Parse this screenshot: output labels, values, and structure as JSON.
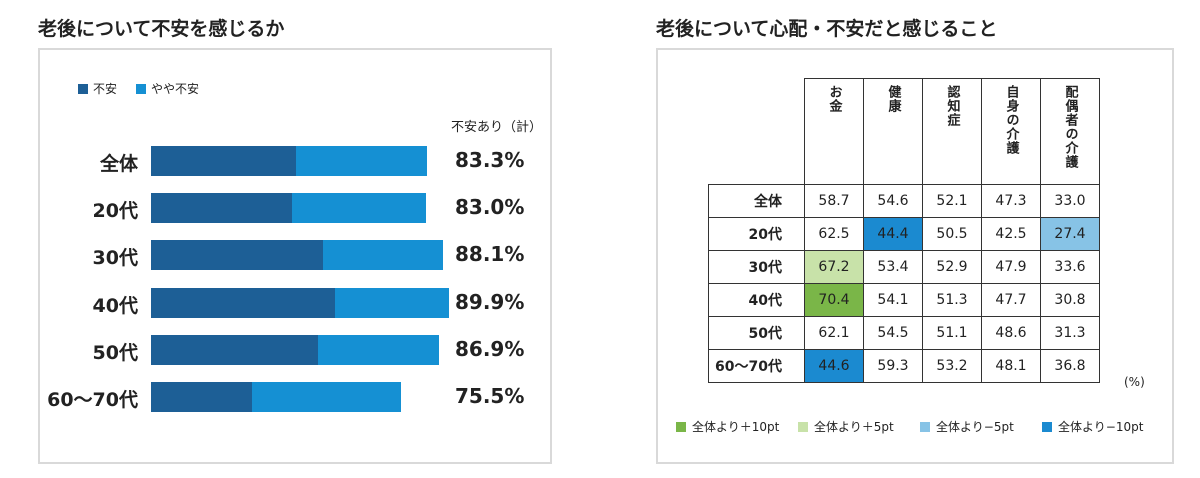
{
  "left": {
    "title": "老後について不安を感じるか",
    "legend": [
      {
        "label": "不安",
        "color": "#1d5f96"
      },
      {
        "label": "やや不安",
        "color": "#1590d3"
      }
    ],
    "total_header": "不安あり（計）"
  },
  "right": {
    "title": "老後について心配・不安だと感じること",
    "unit": "(%)",
    "legend": [
      {
        "label": "全体より＋10pt",
        "color": "#7ab648"
      },
      {
        "label": "全体より＋5pt",
        "color": "#c8e2a9"
      },
      {
        "label": "全体より−5pt",
        "color": "#87c3e6"
      },
      {
        "label": "全体より−10pt",
        "color": "#1b8ad0"
      }
    ]
  },
  "chart_data": [
    {
      "type": "bar",
      "orientation": "horizontal",
      "stacked": true,
      "title": "老後について不安を感じるか",
      "categories": [
        "全体",
        "20代",
        "30代",
        "40代",
        "50代",
        "60〜70代"
      ],
      "series": [
        {
          "name": "不安",
          "values": [
            43.7,
            42.5,
            52.0,
            55.5,
            50.5,
            30.5
          ],
          "color": "#1d5f96"
        },
        {
          "name": "やや不安",
          "values": [
            39.6,
            40.5,
            36.1,
            34.4,
            36.4,
            45.0
          ],
          "color": "#1590d3"
        }
      ],
      "totals": [
        "83.3%",
        "83.0%",
        "88.1%",
        "89.9%",
        "86.9%",
        "75.5%"
      ],
      "totals_label": "不安あり（計）",
      "legend_position": "top-left",
      "xlim": [
        0,
        100
      ]
    },
    {
      "type": "table",
      "title": "老後について心配・不安だと感じること",
      "columns": [
        "お金",
        "健康",
        "認知症",
        "自身の介護",
        "配偶者の介護"
      ],
      "rows": [
        "全体",
        "20代",
        "30代",
        "40代",
        "50代",
        "60〜70代"
      ],
      "values": [
        [
          "58.7",
          "54.6",
          "52.1",
          "47.3",
          "33.0"
        ],
        [
          "62.5",
          "44.4",
          "50.5",
          "42.5",
          "27.4"
        ],
        [
          "67.2",
          "53.4",
          "52.9",
          "47.9",
          "33.6"
        ],
        [
          "70.4",
          "54.1",
          "51.3",
          "47.7",
          "30.8"
        ],
        [
          "62.1",
          "54.5",
          "51.1",
          "48.6",
          "31.3"
        ],
        [
          "44.6",
          "59.3",
          "53.2",
          "48.1",
          "36.8"
        ]
      ],
      "highlights": [
        [
          "",
          "",
          "",
          "",
          ""
        ],
        [
          "",
          "-10",
          "",
          "",
          "-5"
        ],
        [
          "+5",
          "",
          "",
          "",
          ""
        ],
        [
          "+10",
          "",
          "",
          "",
          ""
        ],
        [
          "",
          "",
          "",
          "",
          ""
        ],
        [
          "-10",
          "",
          "",
          "",
          ""
        ]
      ],
      "unit": "(%)"
    }
  ]
}
